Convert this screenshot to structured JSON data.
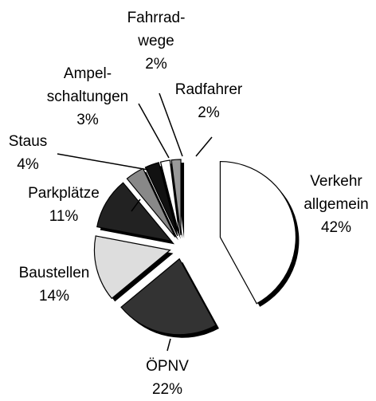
{
  "chart_data": {
    "type": "pie",
    "categories": [
      "Verkehr\nallgemein",
      "ÖPNV",
      "Baustellen",
      "Parkplätze",
      "Staus",
      "Ampel-\nschaltungen",
      "Fahrrad-\nwege",
      "Radfahrer"
    ],
    "values": [
      42,
      22,
      14,
      11,
      4,
      3,
      2,
      2
    ],
    "value_labels": [
      "42%",
      "22%",
      "14%",
      "11%",
      "4%",
      "3%",
      "2%",
      "2%"
    ],
    "colors": [
      "#ffffff",
      "#333333",
      "#dddddd",
      "#222222",
      "#888888",
      "#111111",
      "#ffffff",
      "#999999"
    ]
  }
}
